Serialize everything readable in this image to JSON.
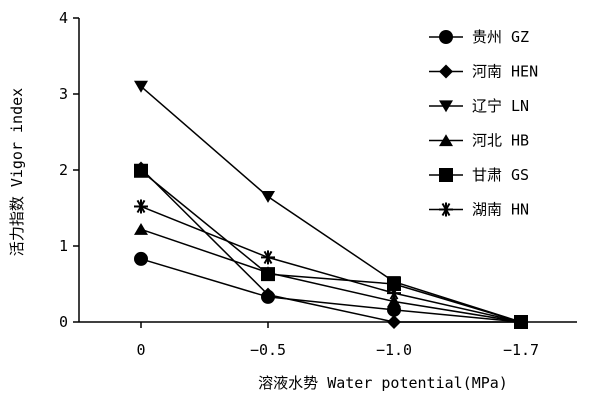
{
  "chart_data": {
    "type": "line",
    "title": "",
    "xlabel": "溶液水势 Water potential(MPa)",
    "ylabel": "活力指数 Vigor index",
    "categories": [
      "0",
      "−0.5",
      "−1.0",
      "−1.7"
    ],
    "ylim": [
      0,
      4
    ],
    "yticks": [
      "0",
      "1",
      "2",
      "3",
      "4"
    ],
    "grid": false,
    "legend_position": "right",
    "series": [
      {
        "name": "贵州 GZ",
        "marker": "circle",
        "values": [
          0.83,
          0.33,
          0.16,
          0.0
        ]
      },
      {
        "name": "河南 HEN",
        "marker": "diamond",
        "values": [
          2.02,
          0.36,
          0.0,
          0.0
        ]
      },
      {
        "name": "辽宁 LN",
        "marker": "triangle-down",
        "values": [
          3.1,
          1.65,
          0.53,
          0.0
        ]
      },
      {
        "name": "河北 HB",
        "marker": "triangle-up",
        "values": [
          1.22,
          0.65,
          0.27,
          0.0
        ]
      },
      {
        "name": "甘肃 GS",
        "marker": "square",
        "values": [
          1.99,
          0.63,
          0.5,
          0.0
        ]
      },
      {
        "name": "湖南 HN",
        "marker": "asterisk",
        "values": [
          1.52,
          0.85,
          0.38,
          0.0
        ]
      }
    ],
    "colors": {
      "line": "#000000",
      "marker": "#000000"
    }
  }
}
